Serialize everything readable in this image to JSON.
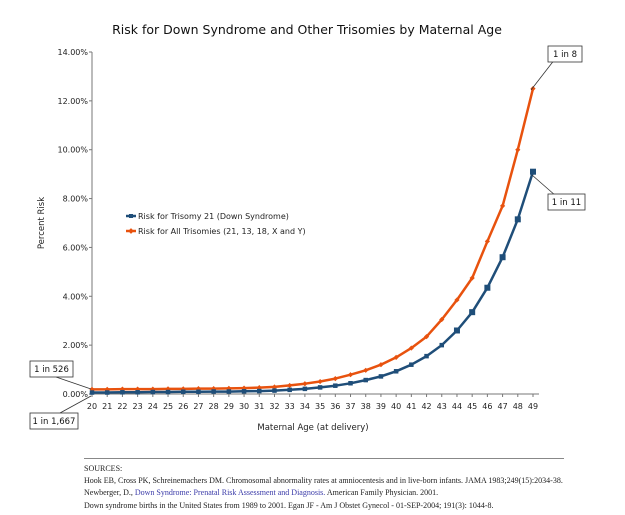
{
  "chart_data": {
    "type": "line",
    "title": "Risk for Down Syndrome and Other Trisomies by Maternal Age",
    "xlabel": "Maternal Age (at delivery)",
    "ylabel": "Percent Risk",
    "ylim": [
      0,
      14
    ],
    "yticks": [
      "0.00%",
      "2.00%",
      "4.00%",
      "6.00%",
      "8.00%",
      "10.00%",
      "12.00%",
      "14.00%"
    ],
    "categories": [
      "20",
      "21",
      "22",
      "23",
      "24",
      "25",
      "26",
      "27",
      "28",
      "29",
      "30",
      "31",
      "32",
      "33",
      "34",
      "35",
      "36",
      "37",
      "38",
      "39",
      "40",
      "41",
      "42",
      "43",
      "44",
      "45",
      "46",
      "47",
      "48",
      "49"
    ],
    "grid": false,
    "legend_position": "middle-left",
    "series": [
      {
        "name": "Risk for Trisomy 21 (Down Syndrome)",
        "color": "#1f4e79",
        "marker": "square",
        "values": [
          0.06,
          0.06,
          0.07,
          0.07,
          0.08,
          0.08,
          0.09,
          0.09,
          0.1,
          0.1,
          0.11,
          0.12,
          0.14,
          0.17,
          0.21,
          0.27,
          0.34,
          0.44,
          0.57,
          0.72,
          0.93,
          1.2,
          1.55,
          2.0,
          2.6,
          3.35,
          4.35,
          5.6,
          7.15,
          9.1
        ]
      },
      {
        "name": "Risk for All Trisomies (21, 13, 18, X and Y)",
        "color": "#e8520e",
        "marker": "diamond",
        "values": [
          0.19,
          0.19,
          0.2,
          0.2,
          0.2,
          0.21,
          0.21,
          0.22,
          0.22,
          0.23,
          0.24,
          0.26,
          0.29,
          0.35,
          0.42,
          0.51,
          0.63,
          0.79,
          0.97,
          1.2,
          1.5,
          1.88,
          2.35,
          3.05,
          3.85,
          4.75,
          6.25,
          7.7,
          10.0,
          12.5
        ]
      }
    ],
    "annotations": [
      {
        "text": "1 in 8",
        "series": 1,
        "category": "49"
      },
      {
        "text": "1 in 11",
        "series": 0,
        "category": "49"
      },
      {
        "text": "1 in 526",
        "series": 1,
        "category": "20"
      },
      {
        "text": "1 in 1,667",
        "series": 0,
        "category": "20"
      }
    ]
  },
  "sources": {
    "heading": "SOURCES:",
    "line1": "Hook EB, Cross PK, Schreinemachers DM. Chromosomal abnormality rates at amniocentesis and in live-born infants. JAMA 1983;249(15):2034-38.",
    "line2_pre": "Newberger, D.,",
    "line2_link": "Down Syndrome: Prenatal Risk Assessment and Diagnosis.",
    "line2_post": "American Family Physician. 2001.",
    "line3": "Down syndrome births in the United States from 1989 to 2001. Egan JF - Am J Obstet Gynecol - 01-SEP-2004; 191(3): 1044-8."
  }
}
